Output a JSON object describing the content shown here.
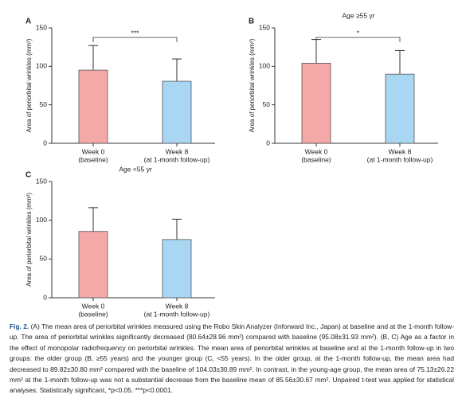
{
  "chart_data": [
    {
      "type": "bar",
      "panel": "A",
      "y_label": "Area of periorbital wrinkles (mm²)",
      "categories": [
        [
          "Week 0",
          "(baseline)"
        ],
        [
          "Week 8",
          "(at 1-month follow-up)"
        ]
      ],
      "values": [
        95.08,
        80.64
      ],
      "errors": [
        31.93,
        28.96
      ],
      "colors": [
        "#f4a9a8",
        "#a9d6f2"
      ],
      "ylim": [
        0,
        150
      ],
      "yticks": [
        0,
        50,
        100,
        150
      ],
      "significance": "***"
    },
    {
      "type": "bar",
      "panel": "B",
      "subtitle": "Age ≥55 yr",
      "y_label": "Area of periorbital wrinkles (mm²)",
      "categories": [
        [
          "Week 0",
          "(baseline)"
        ],
        [
          "Week 8",
          "(at 1-month follow-up)"
        ]
      ],
      "values": [
        104.03,
        89.82
      ],
      "errors": [
        30.89,
        30.8
      ],
      "colors": [
        "#f4a9a8",
        "#a9d6f2"
      ],
      "ylim": [
        0,
        150
      ],
      "yticks": [
        0,
        50,
        100,
        150
      ],
      "significance": "*"
    },
    {
      "type": "bar",
      "panel": "C",
      "subtitle": "Age <55 yr",
      "y_label": "Area of periorbital wrinkles (mm²)",
      "categories": [
        [
          "Week 0",
          "(baseline)"
        ],
        [
          "Week 8",
          "(at 1-month follow-up)"
        ]
      ],
      "values": [
        85.56,
        75.13
      ],
      "errors": [
        30.67,
        26.22
      ],
      "colors": [
        "#f4a9a8",
        "#a9d6f2"
      ],
      "ylim": [
        0,
        150
      ],
      "yticks": [
        0,
        50,
        100,
        150
      ]
    }
  ],
  "caption": {
    "label": "Fig. 2.",
    "text": "(A) The mean area of periorbital wrinkles measured using the Robo Skin Analyzer (Inforward Inc., Japan) at baseline and at the 1-month follow-up. The area of periorbital wrinkles significantly decreased (80.64±28.96 mm²) compared with baseline (95.08±31.93 mm²). (B, C) Age as a factor in the effect of monopolar radiofrequency on periorbital wrinkles. The mean area of periorbital wrinkles at baseline and at the 1-month follow-up in two groups: the older group (B, ≥55 years) and the younger group (C, <55 years). In the older group, at the 1-month follow-up, the mean area had decreased to 89.82±30.80 mm² compared with the baseline of 104.03±30.89 mm². In contrast, in the young-age group, the mean area of 75.13±26.22 mm² at the 1-month follow-up was not a substantial decrease from the baseline mean of 85.56±30.67 mm². Unpaired t-test was applied for statistical analyses. Statistically significant, *p<0.05. ***p<0.0001."
  }
}
